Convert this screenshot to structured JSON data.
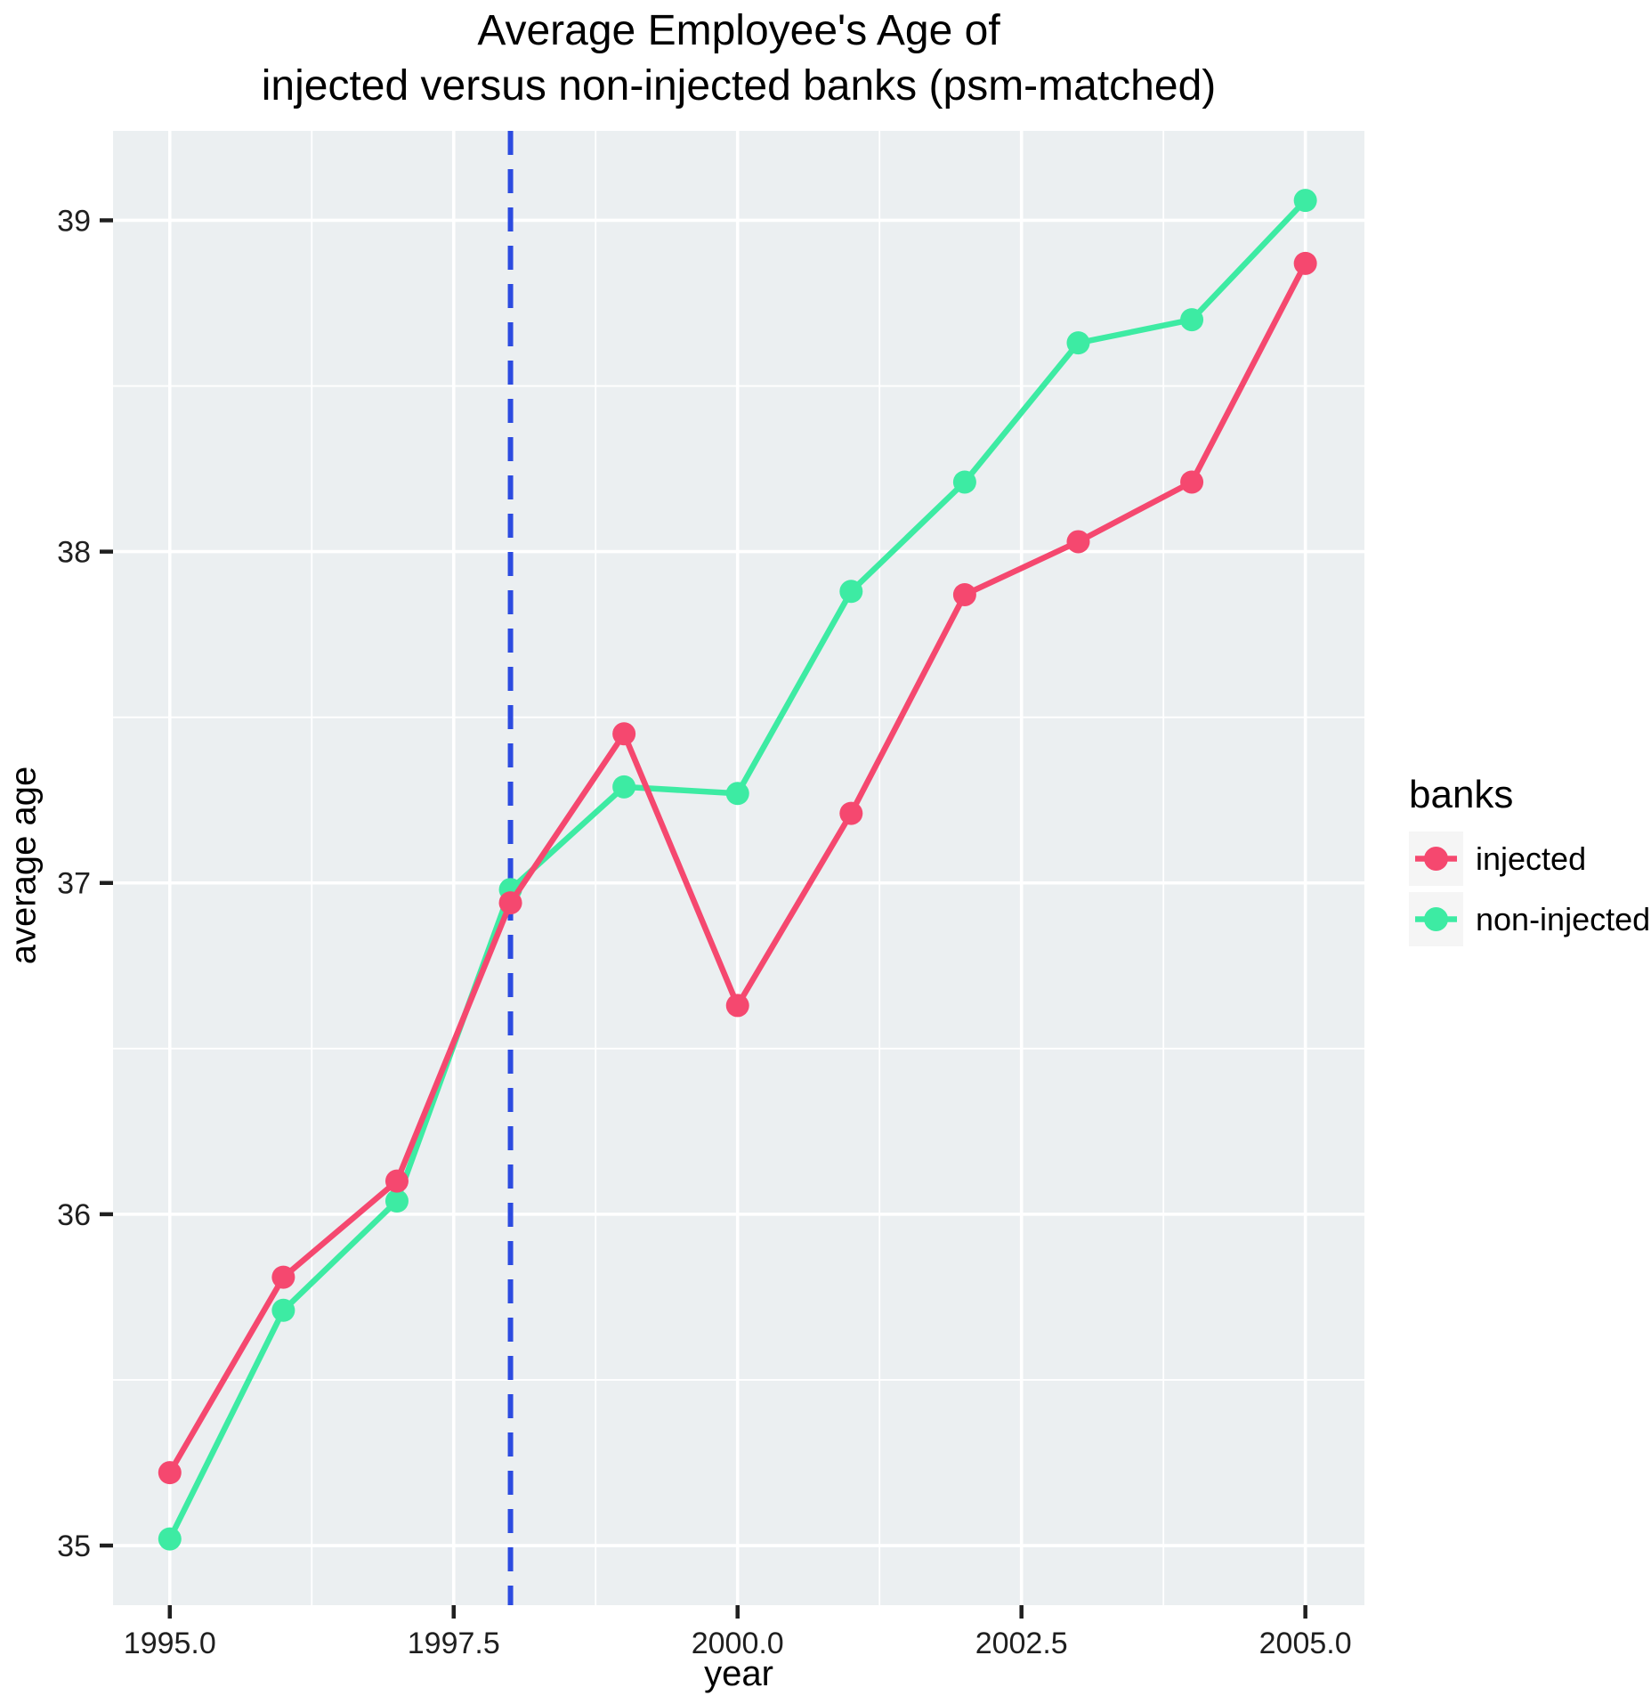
{
  "chart": {
    "title_line1": "Average Employee's Age of",
    "title_line2": "injected versus non-injected banks (psm-matched)"
  },
  "legend": {
    "title": "banks",
    "items": [
      {
        "label": "injected",
        "color": "#F5486F"
      },
      {
        "label": "non-injected",
        "color": "#3DEBA3"
      }
    ]
  },
  "chart_data": {
    "type": "line",
    "title": "Average Employee's Age of\ninjected versus non-injected banks (psm-matched)",
    "xlabel": "year",
    "ylabel": "average age",
    "x": [
      1995,
      1996,
      1997,
      1998,
      1999,
      2000,
      2001,
      2002,
      2003,
      2004,
      2005
    ],
    "series": [
      {
        "name": "injected",
        "color": "#F5486F",
        "values": [
          35.22,
          35.81,
          36.1,
          36.94,
          37.45,
          36.63,
          37.21,
          37.87,
          38.03,
          38.21,
          38.87
        ]
      },
      {
        "name": "non-injected",
        "color": "#3DEBA3",
        "values": [
          35.02,
          35.71,
          36.04,
          36.98,
          37.29,
          37.27,
          37.88,
          38.21,
          38.63,
          38.7,
          39.06
        ]
      }
    ],
    "x_ticks": [
      1995.0,
      1997.5,
      2000.0,
      2002.5,
      2005.0
    ],
    "x_tick_labels": [
      "1995.0",
      "1997.5",
      "2000.0",
      "2002.5",
      "2005.0"
    ],
    "x_minor_ticks": [
      1996.25,
      1998.75,
      2001.25,
      2003.75
    ],
    "y_ticks": [
      35,
      36,
      37,
      38,
      39
    ],
    "y_tick_labels": [
      "35",
      "36",
      "37",
      "38",
      "39"
    ],
    "y_minor_ticks": [
      35.5,
      36.5,
      37.5,
      38.5
    ],
    "xlim": [
      1994.5,
      2005.52
    ],
    "ylim": [
      34.82,
      39.27
    ],
    "vline": {
      "x": 1998,
      "color": "#2C4BE0",
      "style": "dashed"
    },
    "grid": true,
    "legend_position": "right",
    "panel_bg": "#EBEFF1",
    "grid_color": "#FFFFFF"
  }
}
